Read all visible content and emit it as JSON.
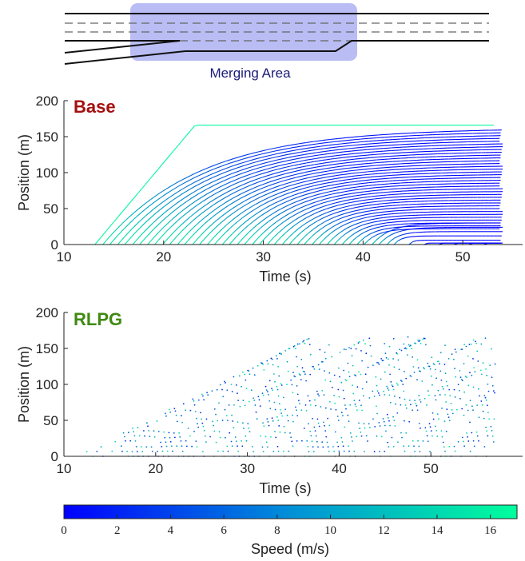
{
  "merging_label": "Merging Area",
  "colors": {
    "merge_zone": "#b9bdf4",
    "base_title": "#a50f0f",
    "rlpg_title": "#3f8a12",
    "speed_low": "#0000ff",
    "speed_high": "#00ff9c"
  },
  "chart_data": [
    {
      "type": "line",
      "title": "Base",
      "xlabel": "Time (s)",
      "ylabel": "Position (m)",
      "xlim": [
        10,
        56
      ],
      "ylim": [
        0,
        200
      ],
      "xticks": [
        "10",
        "20",
        "30",
        "40",
        "50"
      ],
      "yticks": [
        "0",
        "50",
        "100",
        "150",
        "200"
      ],
      "grid": false,
      "description_series": "vehicle trajectories colored by speed",
      "trajectory_start_times_s": [
        13.1,
        13.9,
        14.6,
        15.4,
        16.1,
        16.9,
        17.6,
        18.4,
        19.1,
        19.9,
        20.6,
        21.4,
        22.1,
        22.9,
        23.6,
        24.4,
        25.1,
        25.9,
        26.6,
        27.4,
        28.1,
        28.9,
        29.6,
        30.4,
        31.1,
        31.9,
        32.6,
        33.4,
        34.1,
        34.9,
        35.6,
        36.4,
        37.1,
        37.9,
        38.6,
        39.4,
        40.1,
        40.9,
        41.6,
        42.4,
        43.1,
        44.6,
        46.1,
        47.6,
        49.1,
        50.6,
        52.1
      ],
      "queue_positions_m": [
        166,
        162,
        158,
        154,
        150,
        146,
        142,
        138,
        134,
        130,
        126,
        122,
        118,
        114,
        110,
        106,
        102,
        98,
        94,
        90,
        86,
        82,
        78,
        74,
        70,
        66,
        62,
        58,
        54,
        50,
        46,
        42,
        38,
        34,
        30,
        26,
        22
      ],
      "end_time_s": 54,
      "road_end_position_m": 166
    },
    {
      "type": "scatter",
      "title": "RLPG",
      "xlabel": "Time (s)",
      "ylabel": "Position (m)",
      "xlim": [
        10,
        60
      ],
      "ylim": [
        0,
        200
      ],
      "xticks": [
        "10",
        "20",
        "30",
        "40",
        "50"
      ],
      "yticks": [
        "0",
        "50",
        "100",
        "150",
        "200"
      ],
      "grid": false,
      "description_series": "vehicle positions sampled over time, colored by speed",
      "arrival_start_s": 11.5,
      "arrival_interval_s": 0.55,
      "end_time_s": 57,
      "road_end_position_m": 166
    }
  ],
  "colorbar": {
    "label": "Speed (m/s)",
    "ticks": [
      "0",
      "2",
      "4",
      "6",
      "8",
      "10",
      "12",
      "14",
      "16"
    ],
    "range": [
      0,
      17
    ]
  }
}
